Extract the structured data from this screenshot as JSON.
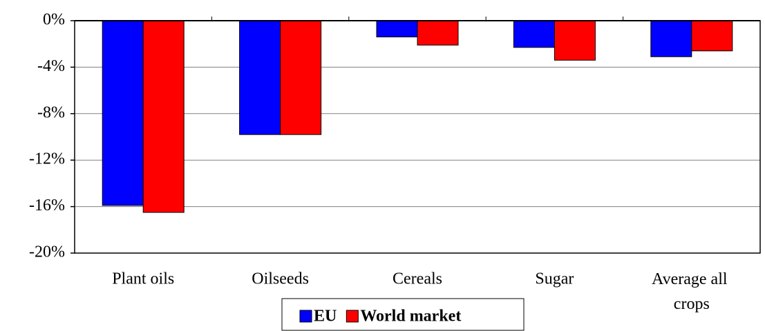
{
  "chart_data": {
    "type": "bar",
    "categories": [
      "Plant oils",
      "Oilseeds",
      "Cereals",
      "Sugar",
      "Average all crops"
    ],
    "series": [
      {
        "name": "EU",
        "color": "#0000ff",
        "values": [
          -15.9,
          -9.8,
          -1.4,
          -2.3,
          -3.1
        ]
      },
      {
        "name": "World market",
        "color": "#ff0000",
        "values": [
          -16.5,
          -9.8,
          -2.1,
          -3.4,
          -2.6
        ]
      }
    ],
    "ylim": [
      -20,
      0
    ],
    "yticks": [
      {
        "value": 0,
        "label": "0%"
      },
      {
        "value": -4,
        "label": "-4%"
      },
      {
        "value": -8,
        "label": "-8%"
      },
      {
        "value": -12,
        "label": "-12%"
      },
      {
        "value": -16,
        "label": "-16%"
      },
      {
        "value": -20,
        "label": "-20%"
      }
    ],
    "grid": true,
    "legend": "bottom"
  }
}
